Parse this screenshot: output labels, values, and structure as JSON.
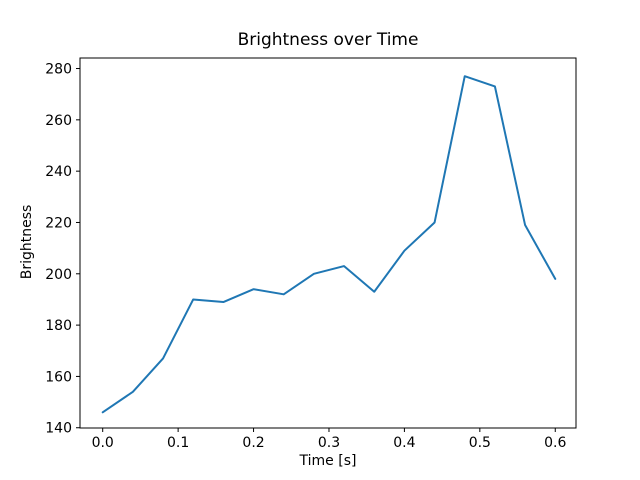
{
  "figure": {
    "background": "#ffffff",
    "text_color": "#000000",
    "spine_color": "#000000"
  },
  "chart_data": {
    "type": "line",
    "title": "Brightness over Time",
    "xlabel": "Time [s]",
    "ylabel": "Brightness",
    "series": [
      {
        "name": "brightness",
        "x": [
          0.0,
          0.04,
          0.08,
          0.12,
          0.16,
          0.2,
          0.24,
          0.28,
          0.32,
          0.36,
          0.4,
          0.44,
          0.48,
          0.52,
          0.56,
          0.6
        ],
        "y": [
          146,
          154,
          167,
          190,
          189,
          194,
          192,
          200,
          203,
          193,
          209,
          220,
          277,
          273,
          219,
          198
        ],
        "color": "#1f77b4"
      }
    ],
    "xlim": [
      -0.0301,
      0.6275
    ],
    "ylim": [
      139.9,
      284.1
    ],
    "xticks": {
      "values": [
        0.0,
        0.1,
        0.2,
        0.3,
        0.4,
        0.5,
        0.6
      ],
      "labels": [
        "0.0",
        "0.1",
        "0.2",
        "0.3",
        "0.4",
        "0.5",
        "0.6"
      ]
    },
    "yticks": {
      "values": [
        140,
        160,
        180,
        200,
        220,
        240,
        260,
        280
      ],
      "labels": [
        "140",
        "160",
        "180",
        "200",
        "220",
        "240",
        "260",
        "280"
      ]
    },
    "grid": false,
    "legend": "none"
  }
}
